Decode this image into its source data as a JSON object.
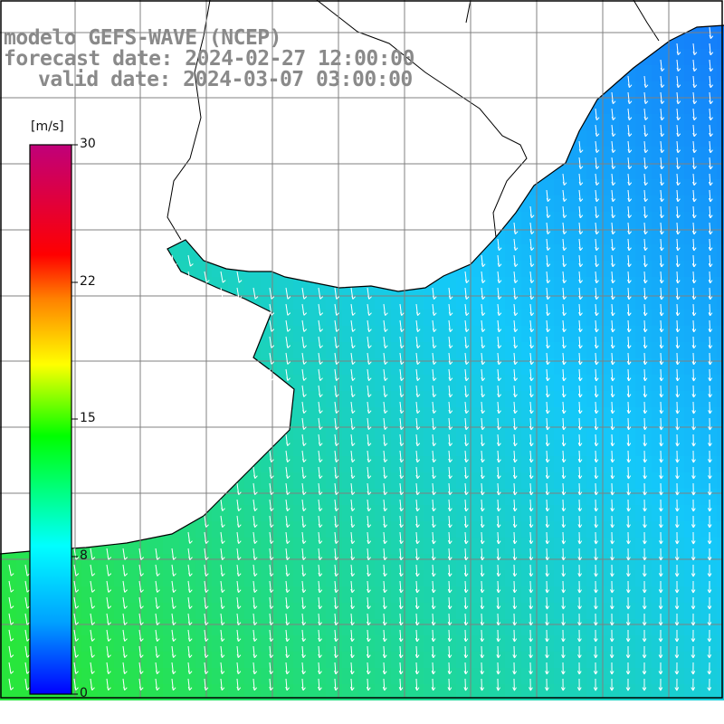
{
  "title": {
    "line1": "modelo GEFS-WAVE (NCEP)",
    "line2": "forecast date: 2024-02-27 12:00:00",
    "line3": "valid date: 2024-03-07 03:00:00"
  },
  "colorbar": {
    "unit": "[m/s]",
    "ticks": [
      "30",
      "22",
      "15",
      "8",
      "0"
    ],
    "range": [
      0,
      30
    ],
    "colors": [
      "#0000ff",
      "#00a0ff",
      "#00ffff",
      "#00ff00",
      "#ffff00",
      "#ff8000",
      "#ff0000",
      "#c0007a"
    ]
  },
  "map": {
    "variable": "wind speed and direction",
    "sea_color_low": "#00c8ff",
    "sea_color_high": "#20e020",
    "land_color": "#ffffff",
    "coastline_color": "#000000",
    "grid_color": "#808080",
    "arrow_color": "#ffffff"
  }
}
